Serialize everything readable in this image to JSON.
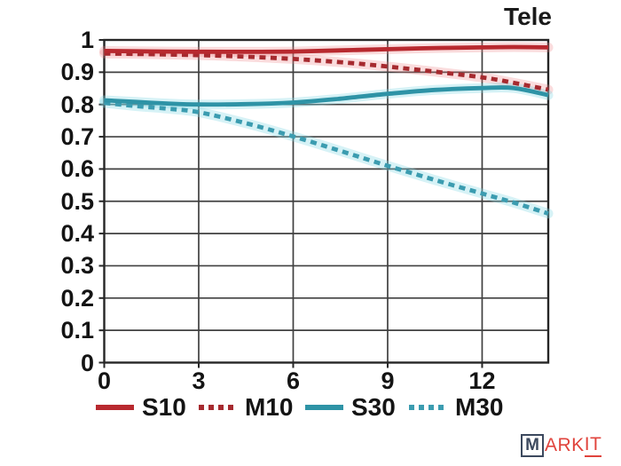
{
  "chart": {
    "corner_label": "Tele",
    "watermark": {
      "boxed_letter": "M",
      "plain": "ARK",
      "underlined": "IT"
    }
  },
  "chart_data": {
    "type": "line",
    "title": "Tele",
    "xlabel": "",
    "ylabel": "",
    "xlim": [
      0,
      14.1
    ],
    "ylim": [
      0,
      1
    ],
    "x_ticks": [
      0,
      3,
      6,
      9,
      12
    ],
    "x_tick_labels": [
      "0",
      "3",
      "6",
      "9",
      "12"
    ],
    "y_ticks": [
      0,
      0.1,
      0.2,
      0.3,
      0.4,
      0.5,
      0.6,
      0.7,
      0.8,
      0.9,
      1
    ],
    "y_tick_labels": [
      "0",
      "0.1",
      "0.2",
      "0.3",
      "0.4",
      "0.5",
      "0.6",
      "0.7",
      "0.8",
      "0.9",
      "1"
    ],
    "grid": true,
    "legend_position": "bottom",
    "grid_color": "#404040",
    "border_color": "#262626",
    "series": [
      {
        "name": "S10",
        "color": "#b8292f",
        "halo": "rgba(236,130,134,0.28)",
        "dash": null,
        "x": [
          0,
          2,
          4,
          6,
          8,
          10,
          12,
          13,
          14.1
        ],
        "y": [
          0.966,
          0.964,
          0.963,
          0.964,
          0.969,
          0.974,
          0.977,
          0.978,
          0.977
        ]
      },
      {
        "name": "M10",
        "color": "#a62a2f",
        "halo": "rgba(236,130,134,0.28)",
        "dash": "7 5.5",
        "x": [
          0,
          2,
          4,
          6,
          8,
          10,
          12,
          13,
          14.1
        ],
        "y": [
          0.958,
          0.955,
          0.95,
          0.941,
          0.927,
          0.907,
          0.884,
          0.867,
          0.846
        ]
      },
      {
        "name": "S30",
        "color": "#2e93a6",
        "halo": "rgba(130,215,228,0.33)",
        "dash": null,
        "x": [
          0,
          1,
          2,
          3,
          4.5,
          6,
          7.5,
          9,
          10.5,
          12,
          13,
          14.1
        ],
        "y": [
          0.813,
          0.808,
          0.803,
          0.8,
          0.801,
          0.806,
          0.818,
          0.833,
          0.845,
          0.851,
          0.851,
          0.829
        ]
      },
      {
        "name": "M30",
        "color": "#3b9cb0",
        "halo": "rgba(130,215,228,0.33)",
        "dash": "7 5.5",
        "x": [
          0,
          1,
          2,
          3,
          4.5,
          6,
          7.5,
          9,
          10.5,
          12,
          13,
          14.1
        ],
        "y": [
          0.805,
          0.795,
          0.787,
          0.776,
          0.742,
          0.701,
          0.656,
          0.61,
          0.566,
          0.524,
          0.496,
          0.462
        ]
      }
    ]
  }
}
